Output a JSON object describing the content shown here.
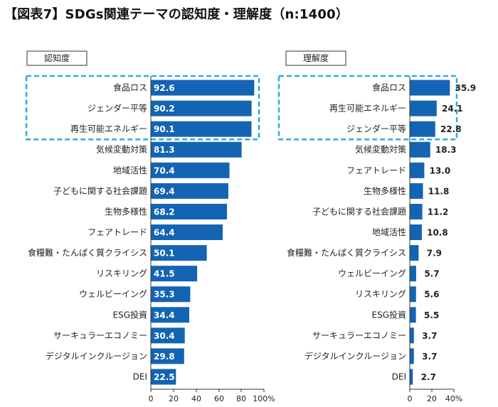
{
  "title": "【図表7】SDGs関連テーマの認知度・理解度（n:1400）",
  "colors": {
    "bar": "#1464b4",
    "highlight": "#33aadd",
    "axis": "#333333"
  },
  "chart_data": [
    {
      "type": "bar",
      "orientation": "horizontal",
      "title": "認知度",
      "categories": [
        "食品ロス",
        "ジェンダー平等",
        "再生可能エネルギー",
        "気候変動対策",
        "地域活性",
        "子どもに関する社会課題",
        "生物多様性",
        "フェアトレード",
        "食糧難・たんぱく質クライシス",
        "リスキリング",
        "ウェルビーイング",
        "ESG投資",
        "サーキュラーエコノミー",
        "デジタルインクルージョン",
        "DEI"
      ],
      "values": [
        92.6,
        90.2,
        90.1,
        81.3,
        70.4,
        69.4,
        68.2,
        64.4,
        50.1,
        41.5,
        35.3,
        34.4,
        30.4,
        29.8,
        22.5
      ],
      "value_labels": [
        "92.6",
        "90.2",
        "90.1",
        "81.3",
        "70.4",
        "69.4",
        "68.2",
        "64.4",
        "50.1",
        "41.5",
        "35.3",
        "34.4",
        "30.4",
        "29.8",
        "22.5"
      ],
      "label_position": "inside",
      "xlim": [
        0,
        100
      ],
      "ticks": [
        "0",
        "20",
        "40",
        "60",
        "80",
        "100%"
      ],
      "highlighted": 3
    },
    {
      "type": "bar",
      "orientation": "horizontal",
      "title": "理解度",
      "categories": [
        "食品ロス",
        "再生可能エネルギー",
        "ジェンダー平等",
        "気候変動対策",
        "フェアトレード",
        "生物多様性",
        "子どもに関する社会課題",
        "地域活性",
        "食糧難・たんぱく質クライシス",
        "ウェルビーイング",
        "リスキリング",
        "ESG投資",
        "サーキュラーエコノミー",
        "デジタルインクルージョン",
        "DEI"
      ],
      "values": [
        35.9,
        24.1,
        22.8,
        18.3,
        13.0,
        11.8,
        11.2,
        10.8,
        7.9,
        5.7,
        5.6,
        5.5,
        3.7,
        3.7,
        2.7
      ],
      "value_labels": [
        "35.9",
        "24.1",
        "22.8",
        "18.3",
        "13.0",
        "11.8",
        "11.2",
        "10.8",
        "7.9",
        "5.7",
        "5.6",
        "5.5",
        "3.7",
        "3.7",
        "2.7"
      ],
      "label_position": "outside",
      "xlim": [
        0,
        40
      ],
      "ticks": [
        "0",
        "20",
        "40%"
      ],
      "highlighted": 3
    }
  ]
}
